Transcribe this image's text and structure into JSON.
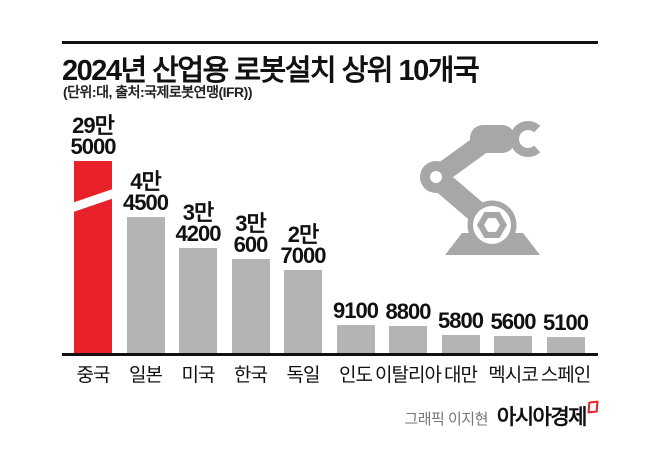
{
  "header": {
    "title": "2024년 산업용 로봇설치 상위 10개국",
    "subtitle": "(단위:대, 출처:국제로봇연맹(IFR))"
  },
  "chart_data": {
    "type": "bar",
    "title": "2024년 산업용 로봇설치 상위 10개국",
    "unit": "대",
    "source": "국제로봇연맹(IFR)",
    "categories": [
      "중국",
      "일본",
      "미국",
      "한국",
      "독일",
      "인도",
      "이탈리아",
      "대만",
      "멕시코",
      "스페인"
    ],
    "values": [
      295000,
      44500,
      34200,
      30600,
      27000,
      9100,
      8800,
      5800,
      5600,
      5100
    ],
    "value_labels": [
      [
        "29만",
        "5000"
      ],
      [
        "4만",
        "4500"
      ],
      [
        "3만",
        "4200"
      ],
      [
        "3만",
        "600"
      ],
      [
        "2만",
        "7000"
      ],
      [
        "9100"
      ],
      [
        "8800"
      ],
      [
        "5800"
      ],
      [
        "5600"
      ],
      [
        "5100"
      ]
    ],
    "highlight_index": 0,
    "truncated_index": 0,
    "axis_break": true,
    "legend": "none",
    "grid": "off",
    "colors": {
      "highlight": "#e8212a",
      "bar": "#b4b4b6",
      "axis": "#111111"
    }
  },
  "robot_icon": {
    "name": "robot-arm",
    "color": "#a7a7aa"
  },
  "footer": {
    "credit": "그래픽 이지현",
    "brand": "아시아경제",
    "brand_mark_color": "#e8212a"
  }
}
